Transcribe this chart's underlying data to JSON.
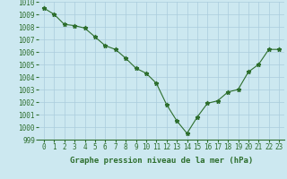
{
  "x": [
    0,
    1,
    2,
    3,
    4,
    5,
    6,
    7,
    8,
    9,
    10,
    11,
    12,
    13,
    14,
    15,
    16,
    17,
    18,
    19,
    20,
    21,
    22,
    23
  ],
  "y": [
    1009.5,
    1009.0,
    1008.2,
    1008.1,
    1007.9,
    1007.2,
    1006.5,
    1006.2,
    1005.5,
    1004.7,
    1004.3,
    1003.5,
    1001.8,
    1000.5,
    999.5,
    1000.8,
    1001.9,
    1002.1,
    1002.8,
    1003.0,
    1004.4,
    1005.0,
    1006.2,
    1006.2
  ],
  "ylim": [
    999,
    1010
  ],
  "xlim": [
    -0.5,
    23.5
  ],
  "yticks": [
    999,
    1000,
    1001,
    1002,
    1003,
    1004,
    1005,
    1006,
    1007,
    1008,
    1009,
    1010
  ],
  "xticks": [
    0,
    1,
    2,
    3,
    4,
    5,
    6,
    7,
    8,
    9,
    10,
    11,
    12,
    13,
    14,
    15,
    16,
    17,
    18,
    19,
    20,
    21,
    22,
    23
  ],
  "xlabel": "Graphe pression niveau de la mer (hPa)",
  "line_color": "#2d6e2d",
  "marker": "*",
  "marker_color": "#2d6e2d",
  "bg_color": "#cce8f0",
  "grid_color": "#aaccdd",
  "tick_label_color": "#2d6e2d",
  "xlabel_fontsize": 6.5,
  "tick_fontsize": 5.5,
  "linewidth": 0.8,
  "marker_size": 3.5
}
